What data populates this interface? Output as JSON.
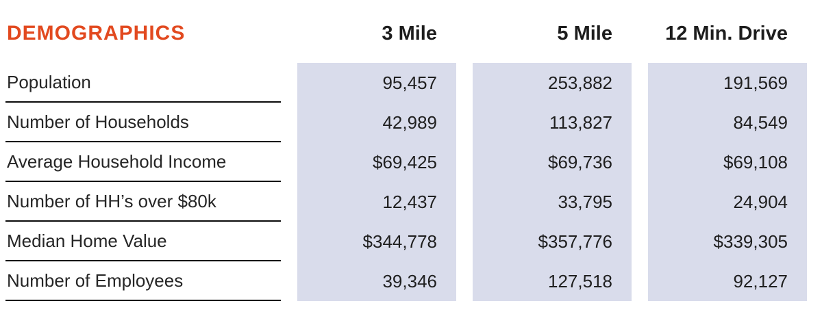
{
  "colors": {
    "accent": "#e2491f",
    "band": "#d9dceb",
    "text": "#1f1f1f",
    "rule": "#0a0a0a",
    "background": "#ffffff"
  },
  "chart_data": {
    "type": "table",
    "title": "DEMOGRAPHICS",
    "columns": [
      "3 Mile",
      "5 Mile",
      "12 Min. Drive"
    ],
    "rows": [
      {
        "label": "Population",
        "values": [
          "95,457",
          "253,882",
          "191,569"
        ]
      },
      {
        "label": "Number of Households",
        "values": [
          "42,989",
          "113,827",
          "84,549"
        ]
      },
      {
        "label": "Average Household Income",
        "values": [
          "$69,425",
          "$69,736",
          "$69,108"
        ]
      },
      {
        "label": "Number of HH’s over $80k",
        "values": [
          "12,437",
          "33,795",
          "24,904"
        ]
      },
      {
        "label": "Median Home Value",
        "values": [
          "$344,778",
          "$357,776",
          "$339,305"
        ]
      },
      {
        "label": "Number of Employees",
        "values": [
          "39,346",
          "127,518",
          "92,127"
        ]
      }
    ]
  }
}
